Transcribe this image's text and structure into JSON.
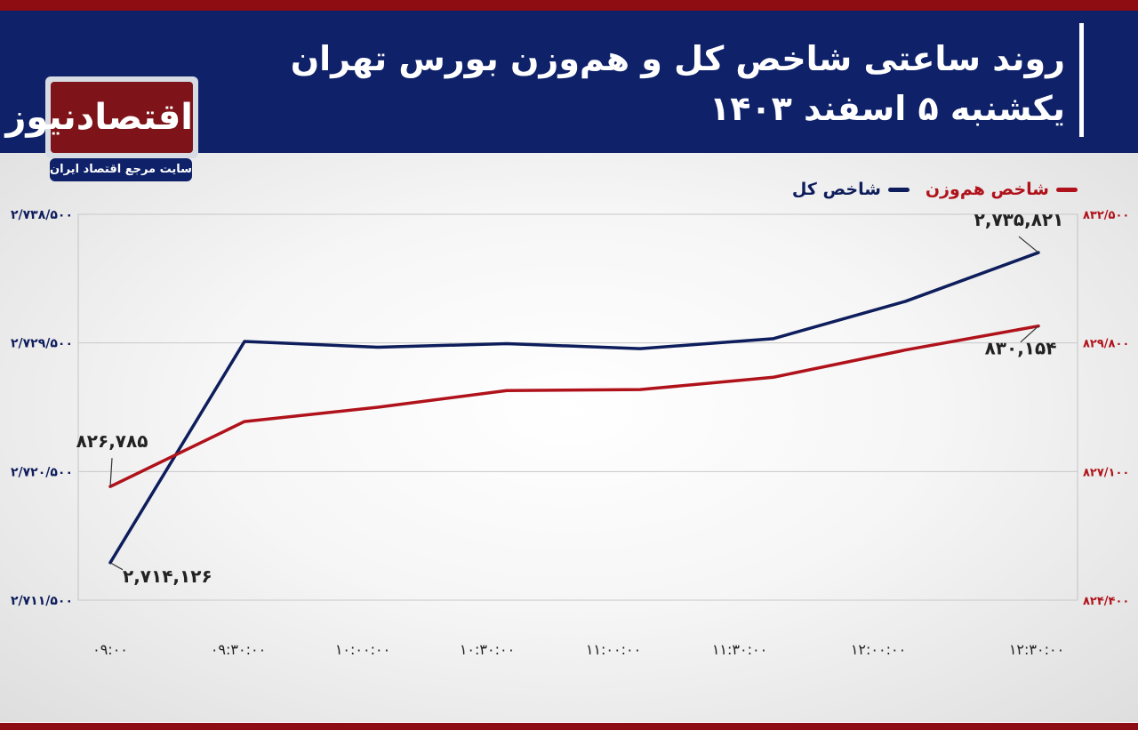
{
  "header": {
    "title": "روند ساعتی شاخص کل و هم‌وزن بورس تهران",
    "subtitle": "یکشنبه ۵ اسفند ۱۴۰۳"
  },
  "logo": {
    "name": "اقتصادنیوز",
    "tagline": "سایت مرجع اقتصاد ایران"
  },
  "colors": {
    "header_bg": "#0e2169",
    "stripe": "#8e0d12",
    "total_index": "#0e1d5c",
    "equal_weight": "#b0121b"
  },
  "chart_data": {
    "type": "line",
    "x": [
      "۰۹:۰۰",
      "۰۹:۳۰:۰۰",
      "۱۰:۰۰:۰۰",
      "۱۰:۳۰:۰۰",
      "۱۱:۰۰:۰۰",
      "۱۱:۳۰:۰۰",
      "۱۲:۰۰:۰۰",
      "۱۲:۳۰:۰۰"
    ],
    "series": [
      {
        "name": "شاخص کل",
        "axis": "left",
        "color": "#0e1d5c",
        "values": [
          2714126,
          2729600,
          2729200,
          2729450,
          2729100,
          2729800,
          2732400,
          2735821
        ]
      },
      {
        "name": "شاخص هم‌وزن",
        "axis": "right",
        "color": "#b0121b",
        "values": [
          826785,
          828150,
          828450,
          828800,
          828820,
          829080,
          829650,
          830154
        ]
      }
    ],
    "y_left": {
      "ylim": [
        2711500,
        2738500
      ],
      "ticks": [
        2711500,
        2720500,
        2729500,
        2738500
      ],
      "tick_labels": [
        "۲/۷۱۱/۵۰۰",
        "۲/۷۲۰/۵۰۰",
        "۲/۷۲۹/۵۰۰",
        "۲/۷۳۸/۵۰۰"
      ]
    },
    "y_right": {
      "ylim": [
        824400,
        832500
      ],
      "ticks": [
        824400,
        827100,
        829800,
        832500
      ],
      "tick_labels": [
        "۸۲۴/۴۰۰",
        "۸۲۷/۱۰۰",
        "۸۲۹/۸۰۰",
        "۸۳۲/۵۰۰"
      ]
    },
    "annotations": [
      {
        "series": 0,
        "index": 0,
        "text": "۲,۷۱۴,۱۲۶"
      },
      {
        "series": 0,
        "index": 7,
        "text": "۲,۷۳۵,۸۲۱"
      },
      {
        "series": 1,
        "index": 0,
        "text": "۸۲۶,۷۸۵"
      },
      {
        "series": 1,
        "index": 7,
        "text": "۸۳۰,۱۵۴"
      }
    ],
    "grid": true,
    "legend": "top-right"
  }
}
